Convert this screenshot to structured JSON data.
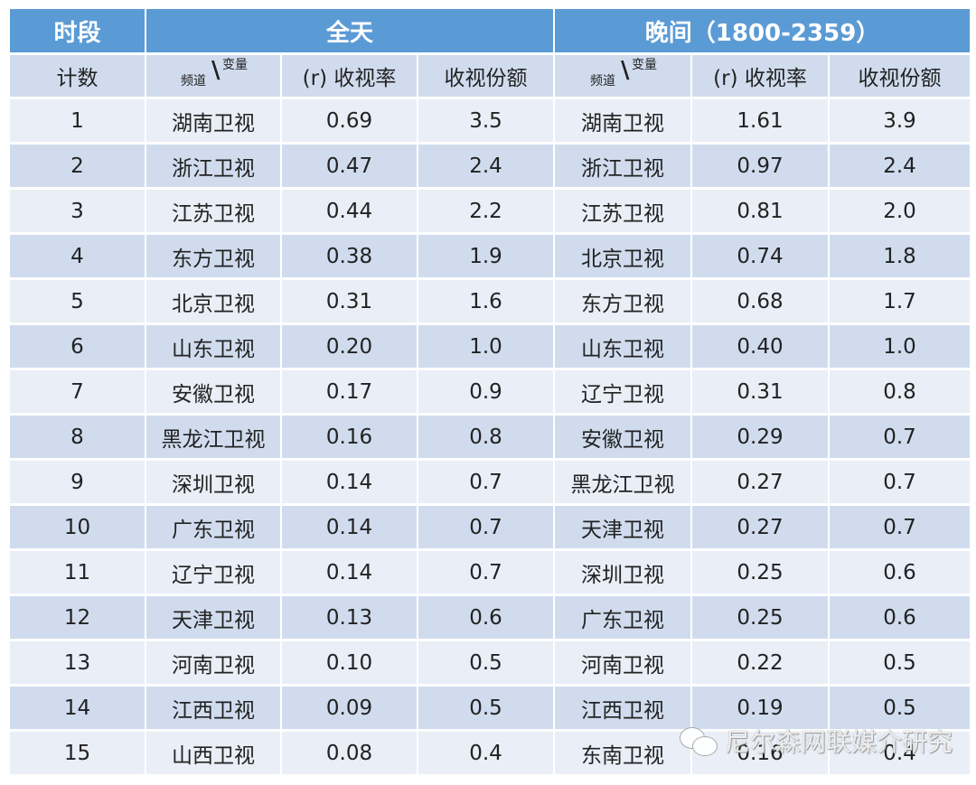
{
  "header": {
    "period_label": "时段",
    "group_allday": "全天",
    "group_evening": "晚间（1800-2359）"
  },
  "subheader": {
    "count_label": "计数",
    "channel_var_lower": "频道",
    "channel_var_upper": "变量",
    "rating_label": "(r) 收视率",
    "share_label": "收视份额"
  },
  "rows": [
    {
      "rank": "1",
      "all_channel": "湖南卫视",
      "all_rating": "0.69",
      "all_share": "3.5",
      "eve_channel": "湖南卫视",
      "eve_rating": "1.61",
      "eve_share": "3.9"
    },
    {
      "rank": "2",
      "all_channel": "浙江卫视",
      "all_rating": "0.47",
      "all_share": "2.4",
      "eve_channel": "浙江卫视",
      "eve_rating": "0.97",
      "eve_share": "2.4"
    },
    {
      "rank": "3",
      "all_channel": "江苏卫视",
      "all_rating": "0.44",
      "all_share": "2.2",
      "eve_channel": "江苏卫视",
      "eve_rating": "0.81",
      "eve_share": "2.0"
    },
    {
      "rank": "4",
      "all_channel": "东方卫视",
      "all_rating": "0.38",
      "all_share": "1.9",
      "eve_channel": "北京卫视",
      "eve_rating": "0.74",
      "eve_share": "1.8"
    },
    {
      "rank": "5",
      "all_channel": "北京卫视",
      "all_rating": "0.31",
      "all_share": "1.6",
      "eve_channel": "东方卫视",
      "eve_rating": "0.68",
      "eve_share": "1.7"
    },
    {
      "rank": "6",
      "all_channel": "山东卫视",
      "all_rating": "0.20",
      "all_share": "1.0",
      "eve_channel": "山东卫视",
      "eve_rating": "0.40",
      "eve_share": "1.0"
    },
    {
      "rank": "7",
      "all_channel": "安徽卫视",
      "all_rating": "0.17",
      "all_share": "0.9",
      "eve_channel": "辽宁卫视",
      "eve_rating": "0.31",
      "eve_share": "0.8"
    },
    {
      "rank": "8",
      "all_channel": "黑龙江卫视",
      "all_rating": "0.16",
      "all_share": "0.8",
      "eve_channel": "安徽卫视",
      "eve_rating": "0.29",
      "eve_share": "0.7"
    },
    {
      "rank": "9",
      "all_channel": "深圳卫视",
      "all_rating": "0.14",
      "all_share": "0.7",
      "eve_channel": "黑龙江卫视",
      "eve_rating": "0.27",
      "eve_share": "0.7"
    },
    {
      "rank": "10",
      "all_channel": "广东卫视",
      "all_rating": "0.14",
      "all_share": "0.7",
      "eve_channel": "天津卫视",
      "eve_rating": "0.27",
      "eve_share": "0.7"
    },
    {
      "rank": "11",
      "all_channel": "辽宁卫视",
      "all_rating": "0.14",
      "all_share": "0.7",
      "eve_channel": "深圳卫视",
      "eve_rating": "0.25",
      "eve_share": "0.6"
    },
    {
      "rank": "12",
      "all_channel": "天津卫视",
      "all_rating": "0.13",
      "all_share": "0.6",
      "eve_channel": "广东卫视",
      "eve_rating": "0.25",
      "eve_share": "0.6"
    },
    {
      "rank": "13",
      "all_channel": "河南卫视",
      "all_rating": "0.10",
      "all_share": "0.5",
      "eve_channel": "河南卫视",
      "eve_rating": "0.22",
      "eve_share": "0.5"
    },
    {
      "rank": "14",
      "all_channel": "江西卫视",
      "all_rating": "0.09",
      "all_share": "0.5",
      "eve_channel": "江西卫视",
      "eve_rating": "0.19",
      "eve_share": "0.5"
    },
    {
      "rank": "15",
      "all_channel": "山西卫视",
      "all_rating": "0.08",
      "all_share": "0.4",
      "eve_channel": "东南卫视",
      "eve_rating": "0.16",
      "eve_share": "0.4"
    }
  ],
  "watermark": {
    "icon": "wechat-icon",
    "text": "尼尔森网联媒介研究"
  },
  "colors": {
    "header_bg": "#5b9bd5",
    "header_text": "#ffffff",
    "band_dark": "#d0dcee",
    "band_light": "#e9eef7"
  },
  "chart_data": {
    "type": "table",
    "title": "",
    "column_groups": [
      {
        "name": "全天",
        "columns": [
          "频道",
          "(r) 收视率",
          "收视份额"
        ]
      },
      {
        "name": "晚间（1800-2359）",
        "columns": [
          "频道",
          "(r) 收视率",
          "收视份额"
        ]
      }
    ],
    "columns": [
      "计数",
      "全天-频道",
      "全天-(r) 收视率",
      "全天-收视份额",
      "晚间-频道",
      "晚间-(r) 收视率",
      "晚间-收视份额"
    ],
    "rows": [
      [
        1,
        "湖南卫视",
        0.69,
        3.5,
        "湖南卫视",
        1.61,
        3.9
      ],
      [
        2,
        "浙江卫视",
        0.47,
        2.4,
        "浙江卫视",
        0.97,
        2.4
      ],
      [
        3,
        "江苏卫视",
        0.44,
        2.2,
        "江苏卫视",
        0.81,
        2.0
      ],
      [
        4,
        "东方卫视",
        0.38,
        1.9,
        "北京卫视",
        0.74,
        1.8
      ],
      [
        5,
        "北京卫视",
        0.31,
        1.6,
        "东方卫视",
        0.68,
        1.7
      ],
      [
        6,
        "山东卫视",
        0.2,
        1.0,
        "山东卫视",
        0.4,
        1.0
      ],
      [
        7,
        "安徽卫视",
        0.17,
        0.9,
        "辽宁卫视",
        0.31,
        0.8
      ],
      [
        8,
        "黑龙江卫视",
        0.16,
        0.8,
        "安徽卫视",
        0.29,
        0.7
      ],
      [
        9,
        "深圳卫视",
        0.14,
        0.7,
        "黑龙江卫视",
        0.27,
        0.7
      ],
      [
        10,
        "广东卫视",
        0.14,
        0.7,
        "天津卫视",
        0.27,
        0.7
      ],
      [
        11,
        "辽宁卫视",
        0.14,
        0.7,
        "深圳卫视",
        0.25,
        0.6
      ],
      [
        12,
        "天津卫视",
        0.13,
        0.6,
        "广东卫视",
        0.25,
        0.6
      ],
      [
        13,
        "河南卫视",
        0.1,
        0.5,
        "河南卫视",
        0.22,
        0.5
      ],
      [
        14,
        "江西卫视",
        0.09,
        0.5,
        "江西卫视",
        0.19,
        0.5
      ],
      [
        15,
        "山西卫视",
        0.08,
        0.4,
        "东南卫视",
        0.16,
        0.4
      ]
    ],
    "series": [
      {
        "name": "全天 (r) 收视率",
        "values": [
          0.69,
          0.47,
          0.44,
          0.38,
          0.31,
          0.2,
          0.17,
          0.16,
          0.14,
          0.14,
          0.14,
          0.13,
          0.1,
          0.09,
          0.08
        ]
      },
      {
        "name": "全天 收视份额",
        "values": [
          3.5,
          2.4,
          2.2,
          1.9,
          1.6,
          1.0,
          0.9,
          0.8,
          0.7,
          0.7,
          0.7,
          0.6,
          0.5,
          0.5,
          0.4
        ]
      },
      {
        "name": "晚间 (r) 收视率",
        "values": [
          1.61,
          0.97,
          0.81,
          0.74,
          0.68,
          0.4,
          0.31,
          0.29,
          0.27,
          0.27,
          0.25,
          0.25,
          0.22,
          0.19,
          0.16
        ]
      },
      {
        "name": "晚间 收视份额",
        "values": [
          3.9,
          2.4,
          2.0,
          1.8,
          1.7,
          1.0,
          0.8,
          0.7,
          0.7,
          0.7,
          0.6,
          0.6,
          0.5,
          0.5,
          0.4
        ]
      }
    ]
  }
}
